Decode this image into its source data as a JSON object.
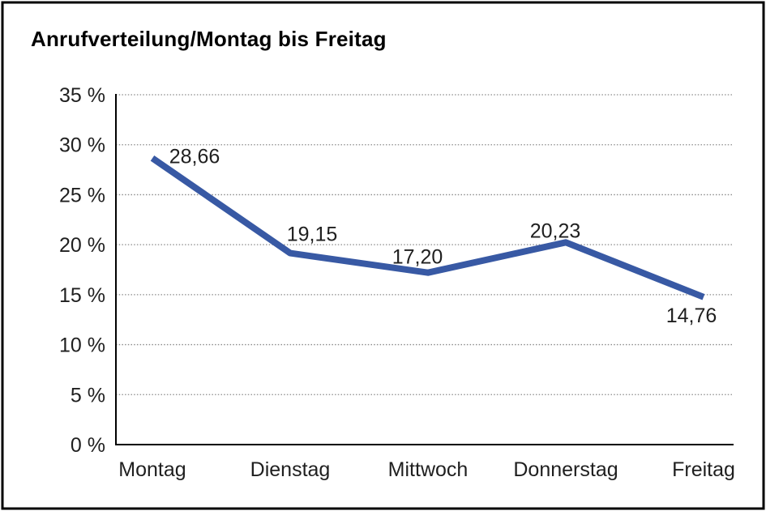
{
  "chart_data": {
    "type": "line",
    "title": "Anrufverteilung/Montag bis Freitag",
    "categories": [
      "Montag",
      "Dienstag",
      "Mittwoch",
      "Donnerstag",
      "Freitag"
    ],
    "series": [
      {
        "name": "Anrufverteilung",
        "values": [
          28.66,
          19.15,
          17.2,
          20.23,
          14.76
        ]
      }
    ],
    "point_labels": [
      "28,66",
      "19,15",
      "17,20",
      "20,23",
      "14,76"
    ],
    "y_ticks": [
      "35 %",
      "30 %",
      "25 %",
      "20 %",
      "15 %",
      "10 %",
      "5 %",
      "0 %"
    ],
    "ylim": [
      0,
      35
    ],
    "y_tick_step": 5,
    "xlabel": "",
    "ylabel": "",
    "grid": "horizontal-dotted",
    "legend": "none",
    "colors": {
      "line": "#3859A4",
      "axis": "#000000",
      "grid": "#8a8a8a",
      "text": "#1f1f1f",
      "background": "#ffffff",
      "border": "#000000"
    }
  }
}
